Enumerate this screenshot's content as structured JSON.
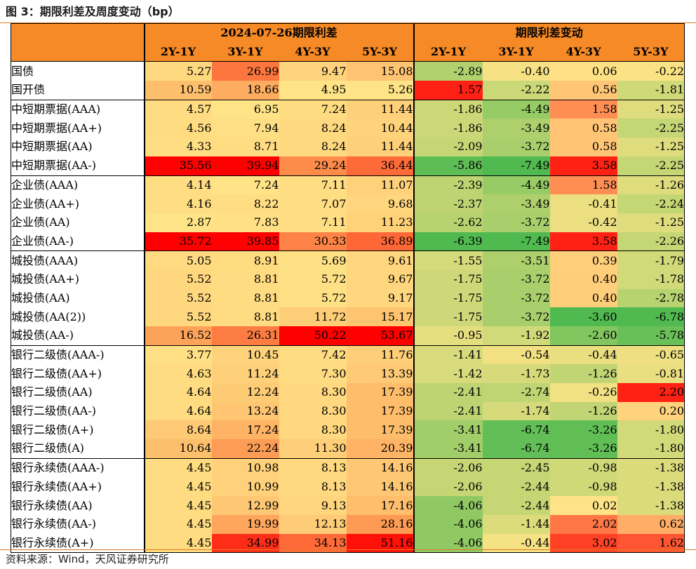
{
  "title": "图 3：期限利差及周度变动（bp）",
  "header": {
    "group_left": "2024-07-26期限利差",
    "group_right": "期限利差变动",
    "columns": [
      "2Y-1Y",
      "3Y-1Y",
      "4Y-3Y",
      "5Y-3Y"
    ]
  },
  "rows": [
    {
      "label": "国债",
      "spread": [
        5.27,
        26.99,
        9.47,
        15.08
      ],
      "change": [
        -2.89,
        -0.4,
        0.06,
        -0.22
      ],
      "spread_text": [
        "5.27",
        "26.99",
        "9.47",
        "15.08"
      ],
      "change_text": [
        "-2.89",
        "-0.40",
        "0.06",
        "-0.22"
      ]
    },
    {
      "label": "国开债",
      "spread": [
        10.59,
        18.66,
        4.95,
        5.26
      ],
      "change": [
        1.57,
        -2.22,
        0.56,
        -1.81
      ],
      "spread_text": [
        "10.59",
        "18.66",
        "4.95",
        "5.26"
      ],
      "change_text": [
        "1.57",
        "-2.22",
        "0.56",
        "-1.81"
      ]
    },
    {
      "label": "中短期票据(AAA)",
      "spread": [
        4.57,
        6.95,
        7.24,
        11.44
      ],
      "change": [
        -1.86,
        -4.49,
        1.58,
        -1.25
      ],
      "spread_text": [
        "4.57",
        "6.95",
        "7.24",
        "11.44"
      ],
      "change_text": [
        "-1.86",
        "-4.49",
        "1.58",
        "-1.25"
      ]
    },
    {
      "label": "中短期票据(AA+)",
      "spread": [
        4.56,
        7.94,
        8.24,
        10.44
      ],
      "change": [
        -1.86,
        -3.49,
        0.58,
        -2.25
      ],
      "spread_text": [
        "4.56",
        "7.94",
        "8.24",
        "10.44"
      ],
      "change_text": [
        "-1.86",
        "-3.49",
        "0.58",
        "-2.25"
      ]
    },
    {
      "label": "中短期票据(AA)",
      "spread": [
        4.33,
        8.71,
        8.24,
        11.44
      ],
      "change": [
        -2.09,
        -3.72,
        0.58,
        -1.25
      ],
      "spread_text": [
        "4.33",
        "8.71",
        "8.24",
        "11.44"
      ],
      "change_text": [
        "-2.09",
        "-3.72",
        "0.58",
        "-1.25"
      ]
    },
    {
      "label": "中短期票据(AA-)",
      "spread": [
        35.56,
        39.94,
        29.24,
        36.44
      ],
      "change": [
        -5.86,
        -7.49,
        3.58,
        -2.25
      ],
      "spread_text": [
        "35.56",
        "39.94",
        "29.24",
        "36.44"
      ],
      "change_text": [
        "-5.86",
        "-7.49",
        "3.58",
        "-2.25"
      ]
    },
    {
      "label": "企业债(AAA)",
      "spread": [
        4.14,
        7.24,
        7.11,
        11.07
      ],
      "change": [
        -2.39,
        -4.49,
        1.58,
        -1.26
      ],
      "spread_text": [
        "4.14",
        "7.24",
        "7.11",
        "11.07"
      ],
      "change_text": [
        "-2.39",
        "-4.49",
        "1.58",
        "-1.26"
      ]
    },
    {
      "label": "企业债(AA+)",
      "spread": [
        4.16,
        8.22,
        7.07,
        9.68
      ],
      "change": [
        -2.37,
        -3.49,
        -0.41,
        -2.24
      ],
      "spread_text": [
        "4.16",
        "8.22",
        "7.07",
        "9.68"
      ],
      "change_text": [
        "-2.37",
        "-3.49",
        "-0.41",
        "-2.24"
      ]
    },
    {
      "label": "企业债(AA)",
      "spread": [
        2.87,
        7.83,
        7.11,
        11.23
      ],
      "change": [
        -2.62,
        -3.72,
        -0.42,
        -1.25
      ],
      "spread_text": [
        "2.87",
        "7.83",
        "7.11",
        "11.23"
      ],
      "change_text": [
        "-2.62",
        "-3.72",
        "-0.42",
        "-1.25"
      ]
    },
    {
      "label": "企业债(AA-)",
      "spread": [
        35.72,
        39.85,
        30.33,
        36.89
      ],
      "change": [
        -6.39,
        -7.49,
        3.58,
        -2.26
      ],
      "spread_text": [
        "35.72",
        "39.85",
        "30.33",
        "36.89"
      ],
      "change_text": [
        "-6.39",
        "-7.49",
        "3.58",
        "-2.26"
      ]
    },
    {
      "label": "城投债(AAA)",
      "spread": [
        5.05,
        8.91,
        5.69,
        9.61
      ],
      "change": [
        -1.55,
        -3.51,
        0.39,
        -1.79
      ],
      "spread_text": [
        "5.05",
        "8.91",
        "5.69",
        "9.61"
      ],
      "change_text": [
        "-1.55",
        "-3.51",
        "0.39",
        "-1.79"
      ]
    },
    {
      "label": "城投债(AA+)",
      "spread": [
        5.52,
        8.81,
        5.72,
        9.67
      ],
      "change": [
        -1.75,
        -3.72,
        0.4,
        -1.78
      ],
      "spread_text": [
        "5.52",
        "8.81",
        "5.72",
        "9.67"
      ],
      "change_text": [
        "-1.75",
        "-3.72",
        "0.40",
        "-1.78"
      ]
    },
    {
      "label": "城投债(AA)",
      "spread": [
        5.52,
        8.81,
        5.72,
        9.17
      ],
      "change": [
        -1.75,
        -3.72,
        0.4,
        -2.78
      ],
      "spread_text": [
        "5.52",
        "8.81",
        "5.72",
        "9.17"
      ],
      "change_text": [
        "-1.75",
        "-3.72",
        "0.40",
        "-2.78"
      ]
    },
    {
      "label": "城投债(AA(2))",
      "spread": [
        5.52,
        8.81,
        11.72,
        15.17
      ],
      "change": [
        -1.75,
        -3.72,
        -3.6,
        -6.78
      ],
      "spread_text": [
        "5.52",
        "8.81",
        "11.72",
        "15.17"
      ],
      "change_text": [
        "-1.75",
        "-3.72",
        "-3.60",
        "-6.78"
      ]
    },
    {
      "label": "城投债(AA-)",
      "spread": [
        16.52,
        26.31,
        50.22,
        53.67
      ],
      "change": [
        -0.95,
        -1.92,
        -2.6,
        -5.78
      ],
      "spread_text": [
        "16.52",
        "26.31",
        "50.22",
        "53.67"
      ],
      "change_text": [
        "-0.95",
        "-1.92",
        "-2.60",
        "-5.78"
      ]
    },
    {
      "label": "银行二级债(AAA-)",
      "spread": [
        3.77,
        10.45,
        7.42,
        11.76
      ],
      "change": [
        -1.41,
        -0.54,
        -0.44,
        -0.65
      ],
      "spread_text": [
        "3.77",
        "10.45",
        "7.42",
        "11.76"
      ],
      "change_text": [
        "-1.41",
        "-0.54",
        "-0.44",
        "-0.65"
      ]
    },
    {
      "label": "银行二级债(AA+)",
      "spread": [
        4.63,
        11.24,
        7.3,
        13.39
      ],
      "change": [
        -1.42,
        -1.73,
        -1.26,
        -0.81
      ],
      "spread_text": [
        "4.63",
        "11.24",
        "7.30",
        "13.39"
      ],
      "change_text": [
        "-1.42",
        "-1.73",
        "-1.26",
        "-0.81"
      ]
    },
    {
      "label": "银行二级债(AA)",
      "spread": [
        4.64,
        12.24,
        8.3,
        17.39
      ],
      "change": [
        -2.41,
        -2.74,
        -0.26,
        2.2
      ],
      "spread_text": [
        "4.64",
        "12.24",
        "8.30",
        "17.39"
      ],
      "change_text": [
        "-2.41",
        "-2.74",
        "-0.26",
        "2.20"
      ]
    },
    {
      "label": "银行二级债(AA-)",
      "spread": [
        4.64,
        13.24,
        8.3,
        17.39
      ],
      "change": [
        -2.41,
        -1.74,
        -1.26,
        0.2
      ],
      "spread_text": [
        "4.64",
        "13.24",
        "8.30",
        "17.39"
      ],
      "change_text": [
        "-2.41",
        "-1.74",
        "-1.26",
        "0.20"
      ]
    },
    {
      "label": "银行二级债(A+)",
      "spread": [
        8.64,
        17.24,
        8.3,
        17.39
      ],
      "change": [
        -3.41,
        -6.74,
        -3.26,
        -1.8
      ],
      "spread_text": [
        "8.64",
        "17.24",
        "8.30",
        "17.39"
      ],
      "change_text": [
        "-3.41",
        "-6.74",
        "-3.26",
        "-1.80"
      ]
    },
    {
      "label": "银行二级债(A)",
      "spread": [
        10.64,
        22.24,
        11.3,
        20.39
      ],
      "change": [
        -3.41,
        -6.74,
        -3.26,
        -1.8
      ],
      "spread_text": [
        "10.64",
        "22.24",
        "11.30",
        "20.39"
      ],
      "change_text": [
        "-3.41",
        "-6.74",
        "-3.26",
        "-1.80"
      ]
    },
    {
      "label": "银行永续债(AAA-)",
      "spread": [
        4.45,
        10.98,
        8.13,
        14.16
      ],
      "change": [
        -2.06,
        -2.45,
        -0.98,
        -1.38
      ],
      "spread_text": [
        "4.45",
        "10.98",
        "8.13",
        "14.16"
      ],
      "change_text": [
        "-2.06",
        "-2.45",
        "-0.98",
        "-1.38"
      ]
    },
    {
      "label": "银行永续债(AA+)",
      "spread": [
        4.45,
        10.99,
        8.13,
        14.16
      ],
      "change": [
        -2.06,
        -2.44,
        -0.98,
        -1.38
      ],
      "spread_text": [
        "4.45",
        "10.99",
        "8.13",
        "14.16"
      ],
      "change_text": [
        "-2.06",
        "-2.44",
        "-0.98",
        "-1.38"
      ]
    },
    {
      "label": "银行永续债(AA)",
      "spread": [
        4.45,
        12.99,
        9.13,
        17.16
      ],
      "change": [
        -4.06,
        -2.44,
        0.02,
        -1.38
      ],
      "spread_text": [
        "4.45",
        "12.99",
        "9.13",
        "17.16"
      ],
      "change_text": [
        "-4.06",
        "-2.44",
        "0.02",
        "-1.38"
      ]
    },
    {
      "label": "银行永续债(AA-)",
      "spread": [
        4.45,
        19.99,
        12.13,
        28.16
      ],
      "change": [
        -4.06,
        -1.44,
        2.02,
        0.62
      ],
      "spread_text": [
        "4.45",
        "19.99",
        "12.13",
        "28.16"
      ],
      "change_text": [
        "-4.06",
        "-1.44",
        "2.02",
        "0.62"
      ]
    },
    {
      "label": "银行永续债(A+)",
      "spread": [
        4.45,
        34.99,
        34.13,
        51.16
      ],
      "change": [
        -4.06,
        -0.44,
        3.02,
        1.62
      ],
      "spread_text": [
        "4.45",
        "34.99",
        "34.13",
        "51.16"
      ],
      "change_text": [
        "-4.06",
        "-0.44",
        "3.02",
        "1.62"
      ]
    }
  ],
  "group_starts": [
    0,
    2,
    6,
    10,
    15,
    21
  ],
  "source": "资料来源：Wind，天风证券研究所"
}
